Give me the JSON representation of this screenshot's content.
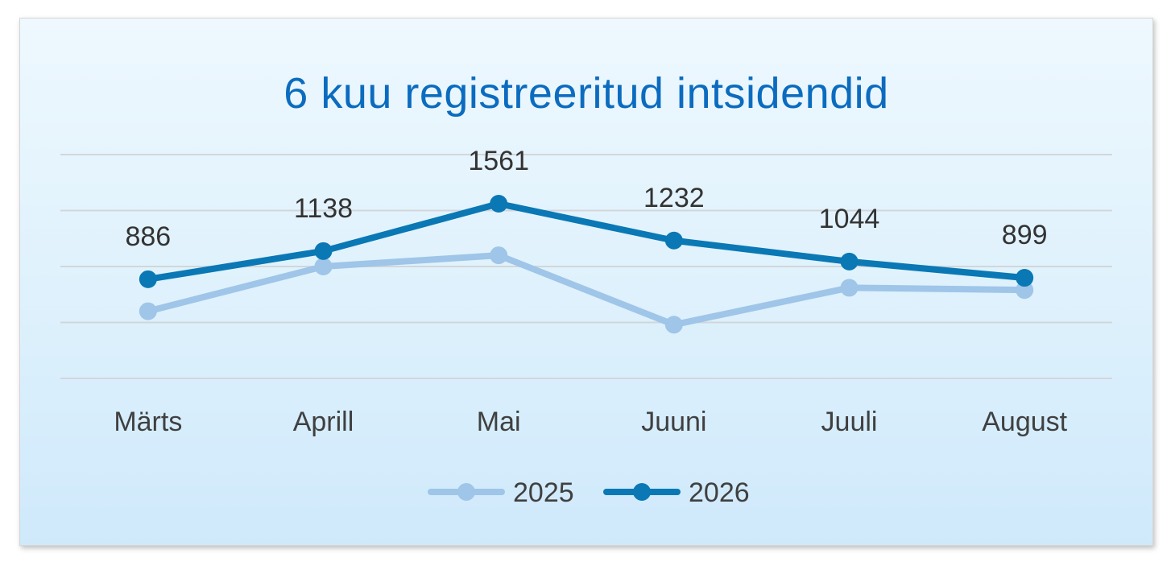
{
  "chart_data": {
    "type": "line",
    "title": "6 kuu registreeritud intsidendid",
    "categories": [
      "Märts",
      "Aprill",
      "Mai",
      "Juuni",
      "Juuli",
      "August"
    ],
    "series": [
      {
        "name": "2025",
        "values": [
          600,
          1000,
          1100,
          480,
          810,
          790
        ],
        "color": "#9fc5e8",
        "show_labels": false
      },
      {
        "name": "2026",
        "values": [
          886,
          1138,
          1561,
          1232,
          1044,
          899
        ],
        "color": "#0a78b4",
        "show_labels": true
      }
    ],
    "ylim": [
      0,
      2000
    ],
    "grid": true,
    "legend": "bottom"
  }
}
